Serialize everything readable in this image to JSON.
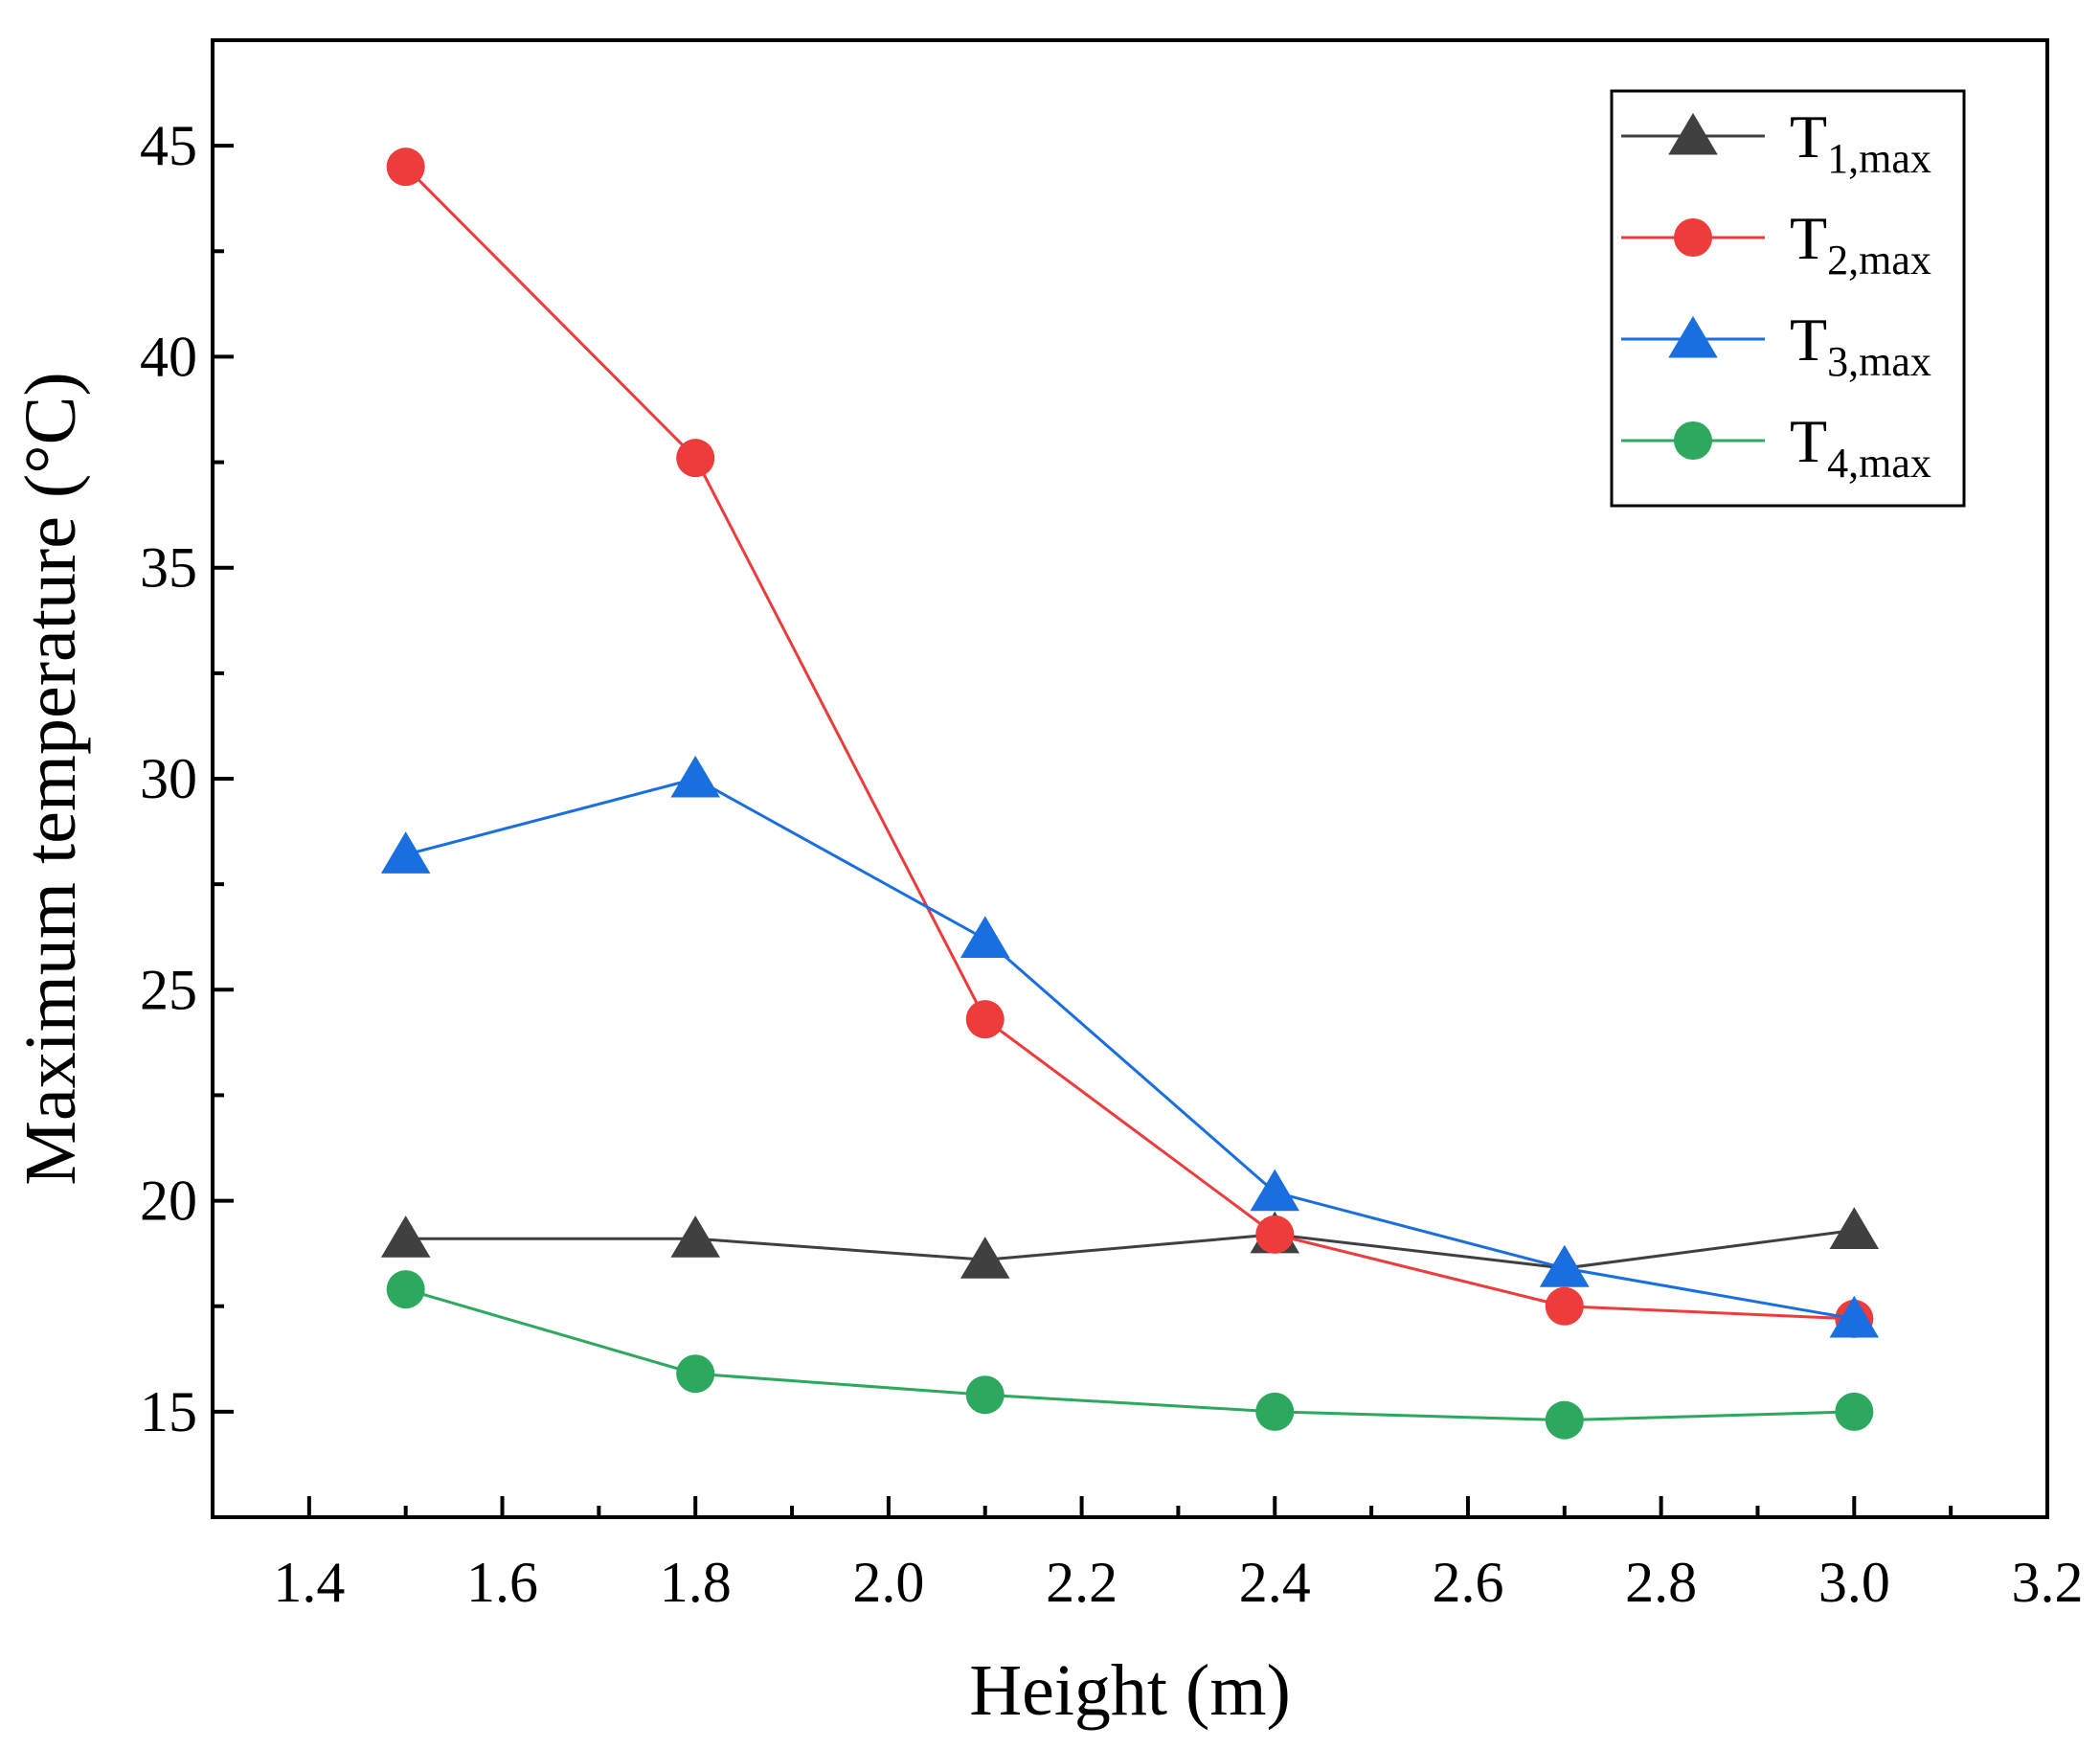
{
  "chart_data": {
    "type": "line",
    "title": "",
    "xlabel": "Height (m)",
    "ylabel": "Maximum temperature (°C)",
    "xlim": [
      1.3,
      3.2
    ],
    "ylim": [
      12.5,
      47.5
    ],
    "xticks": [
      1.4,
      1.6,
      1.8,
      2.0,
      2.2,
      2.4,
      2.6,
      2.8,
      3.0,
      3.2
    ],
    "xtick_labels": [
      "1.4",
      "1.6",
      "1.8",
      "2.0",
      "2.2",
      "2.4",
      "2.6",
      "2.8",
      "3.0",
      "3.2"
    ],
    "yticks": [
      15,
      20,
      25,
      30,
      35,
      40,
      45
    ],
    "ytick_labels": [
      "15",
      "20",
      "25",
      "30",
      "35",
      "40",
      "45"
    ],
    "grid": false,
    "legend_position": "top-right",
    "x": [
      1.5,
      1.8,
      2.1,
      2.4,
      2.7,
      3.0
    ],
    "series": [
      {
        "name": "T1,max",
        "label_main": "T",
        "label_sub": "1,max",
        "color": "#404040",
        "marker": "triangle",
        "values": [
          19.1,
          19.1,
          18.6,
          19.2,
          18.4,
          19.3
        ]
      },
      {
        "name": "T2,max",
        "label_main": "T",
        "label_sub": "2,max",
        "color": "#EE3B3B",
        "marker": "circle",
        "values": [
          44.5,
          37.6,
          24.3,
          19.2,
          17.5,
          17.2
        ]
      },
      {
        "name": "T3,max",
        "label_main": "T",
        "label_sub": "3,max",
        "color": "#1A6FE0",
        "marker": "triangle",
        "values": [
          28.2,
          30.0,
          26.2,
          20.2,
          18.4,
          17.2
        ]
      },
      {
        "name": "T4,max",
        "label_main": "T",
        "label_sub": "4,max",
        "color": "#2DA85F",
        "marker": "circle",
        "values": [
          17.9,
          15.9,
          15.4,
          15.0,
          14.8,
          15.0
        ]
      }
    ]
  }
}
